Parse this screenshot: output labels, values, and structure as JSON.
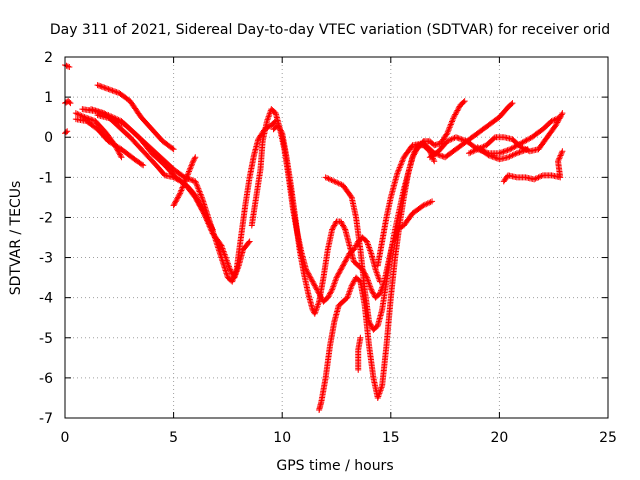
{
  "chart_data": {
    "type": "scatter",
    "title": "Day 311 of 2021, Sidereal Day-to-day VTEC variation (SDTVAR) for receiver orid",
    "xlabel": "GPS time / hours",
    "ylabel": "SDTVAR / TECUs",
    "xlim": [
      0,
      25
    ],
    "ylim": [
      -7,
      2
    ],
    "xticks": [
      0,
      5,
      10,
      15,
      20,
      25
    ],
    "yticks": [
      -7,
      -6,
      -5,
      -4,
      -3,
      -2,
      -1,
      0,
      1,
      2
    ],
    "grid": true,
    "marker": "+",
    "color": "#ff0000",
    "series": [
      {
        "values": [
          [
            0.0,
            1.8
          ],
          [
            0.2,
            1.75
          ]
        ]
      },
      {
        "values": [
          [
            0.0,
            0.85
          ],
          [
            0.15,
            0.9
          ],
          [
            0.25,
            0.85
          ]
        ]
      },
      {
        "values": [
          [
            0.0,
            0.1
          ],
          [
            0.1,
            0.15
          ]
        ]
      },
      {
        "values": [
          [
            0.5,
            0.6
          ],
          [
            0.9,
            0.5
          ],
          [
            1.4,
            0.4
          ],
          [
            1.9,
            0.1
          ],
          [
            2.3,
            -0.2
          ],
          [
            2.6,
            -0.5
          ]
        ]
      },
      {
        "values": [
          [
            0.5,
            0.45
          ],
          [
            1.0,
            0.4
          ],
          [
            1.5,
            0.2
          ],
          [
            2.0,
            -0.1
          ],
          [
            2.6,
            -0.3
          ],
          [
            3.2,
            -0.55
          ],
          [
            3.6,
            -0.7
          ]
        ]
      },
      {
        "values": [
          [
            1.2,
            0.7
          ],
          [
            1.8,
            0.6
          ],
          [
            2.4,
            0.3
          ],
          [
            3.0,
            0.0
          ],
          [
            3.6,
            -0.35
          ],
          [
            4.2,
            -0.7
          ],
          [
            4.6,
            -0.95
          ],
          [
            5.0,
            -1.0
          ],
          [
            5.5,
            -1.15
          ],
          [
            6.0,
            -1.5
          ],
          [
            6.4,
            -1.9
          ],
          [
            6.8,
            -2.3
          ]
        ]
      },
      {
        "values": [
          [
            1.5,
            0.55
          ],
          [
            2.2,
            0.45
          ],
          [
            2.8,
            0.3
          ],
          [
            3.4,
            0.0
          ],
          [
            4.0,
            -0.4
          ],
          [
            4.6,
            -0.7
          ],
          [
            5.1,
            -1.0
          ],
          [
            5.6,
            -1.2
          ],
          [
            6.0,
            -1.45
          ],
          [
            6.4,
            -1.9
          ],
          [
            6.8,
            -2.4
          ],
          [
            7.2,
            -2.7
          ],
          [
            7.6,
            -3.3
          ],
          [
            7.8,
            -3.5
          ],
          [
            8.0,
            -3.2
          ],
          [
            8.2,
            -2.8
          ],
          [
            8.5,
            -2.6
          ]
        ]
      },
      {
        "values": [
          [
            0.8,
            0.7
          ],
          [
            1.4,
            0.65
          ],
          [
            2.0,
            0.55
          ],
          [
            2.6,
            0.4
          ],
          [
            3.2,
            0.1
          ],
          [
            3.8,
            -0.2
          ],
          [
            4.4,
            -0.5
          ],
          [
            5.0,
            -0.8
          ],
          [
            5.5,
            -1.0
          ],
          [
            6.0,
            -1.1
          ],
          [
            6.3,
            -1.5
          ],
          [
            6.6,
            -2.0
          ],
          [
            6.9,
            -2.5
          ],
          [
            7.2,
            -3.0
          ],
          [
            7.5,
            -3.5
          ],
          [
            7.7,
            -3.6
          ],
          [
            7.9,
            -3.3
          ],
          [
            8.1,
            -2.5
          ],
          [
            8.3,
            -1.7
          ],
          [
            8.5,
            -1.0
          ],
          [
            8.7,
            -0.45
          ],
          [
            8.9,
            -0.05
          ],
          [
            9.2,
            0.2
          ],
          [
            9.5,
            0.3
          ],
          [
            9.7,
            0.4
          ]
        ]
      },
      {
        "values": [
          [
            1.5,
            1.3
          ],
          [
            2.0,
            1.2
          ],
          [
            2.5,
            1.1
          ],
          [
            3.0,
            0.9
          ],
          [
            3.5,
            0.5
          ],
          [
            4.0,
            0.2
          ],
          [
            4.5,
            -0.1
          ],
          [
            5.0,
            -0.3
          ]
        ]
      },
      {
        "values": [
          [
            5.0,
            -1.7
          ],
          [
            5.3,
            -1.4
          ],
          [
            5.6,
            -1.0
          ],
          [
            5.9,
            -0.6
          ],
          [
            6.0,
            -0.5
          ]
        ]
      },
      {
        "values": [
          [
            8.6,
            -2.2
          ],
          [
            8.8,
            -1.5
          ],
          [
            9.0,
            -0.8
          ],
          [
            9.1,
            -0.1
          ],
          [
            9.3,
            0.4
          ],
          [
            9.5,
            0.7
          ],
          [
            9.7,
            0.6
          ],
          [
            9.9,
            0.2
          ],
          [
            10.1,
            -0.3
          ],
          [
            10.3,
            -1.0
          ],
          [
            10.5,
            -1.8
          ],
          [
            10.7,
            -2.4
          ],
          [
            10.9,
            -2.9
          ],
          [
            11.1,
            -3.3
          ],
          [
            11.3,
            -3.5
          ],
          [
            11.5,
            -3.7
          ],
          [
            11.7,
            -3.9
          ],
          [
            11.9,
            -4.1
          ],
          [
            12.1,
            -4.0
          ],
          [
            12.3,
            -3.8
          ],
          [
            12.5,
            -3.5
          ],
          [
            12.7,
            -3.3
          ],
          [
            12.9,
            -3.1
          ],
          [
            13.1,
            -2.9
          ],
          [
            13.3,
            -2.8
          ],
          [
            13.5,
            -2.6
          ],
          [
            13.7,
            -2.5
          ],
          [
            13.9,
            -2.6
          ],
          [
            14.1,
            -2.9
          ],
          [
            14.3,
            -3.3
          ],
          [
            14.5,
            -3.6
          ]
        ]
      },
      {
        "values": [
          [
            9.6,
            0.2
          ],
          [
            9.8,
            0.3
          ],
          [
            10.0,
            0.1
          ],
          [
            10.2,
            -0.5
          ],
          [
            10.4,
            -1.2
          ],
          [
            10.6,
            -2.0
          ],
          [
            10.8,
            -2.8
          ],
          [
            11.0,
            -3.4
          ],
          [
            11.2,
            -3.9
          ],
          [
            11.4,
            -4.3
          ],
          [
            11.5,
            -4.4
          ],
          [
            11.7,
            -4.1
          ],
          [
            11.9,
            -3.5
          ],
          [
            12.1,
            -2.8
          ],
          [
            12.3,
            -2.3
          ],
          [
            12.5,
            -2.1
          ],
          [
            12.7,
            -2.1
          ],
          [
            12.9,
            -2.3
          ],
          [
            13.1,
            -2.7
          ],
          [
            13.3,
            -3.1
          ],
          [
            13.5,
            -3.2
          ],
          [
            13.7,
            -3.3
          ],
          [
            13.9,
            -3.5
          ],
          [
            14.1,
            -3.8
          ],
          [
            14.3,
            -4.0
          ],
          [
            14.5,
            -3.9
          ],
          [
            14.7,
            -3.6
          ],
          [
            14.9,
            -3.1
          ],
          [
            15.1,
            -2.6
          ],
          [
            15.3,
            -2.3
          ],
          [
            15.6,
            -2.2
          ],
          [
            16.0,
            -1.9
          ],
          [
            16.5,
            -1.7
          ],
          [
            16.9,
            -1.6
          ]
        ]
      },
      {
        "values": [
          [
            11.7,
            -6.8
          ],
          [
            11.8,
            -6.6
          ],
          [
            12.0,
            -6.0
          ],
          [
            12.2,
            -5.2
          ],
          [
            12.4,
            -4.6
          ],
          [
            12.6,
            -4.2
          ],
          [
            12.8,
            -4.1
          ],
          [
            13.0,
            -4.0
          ],
          [
            13.2,
            -3.7
          ],
          [
            13.4,
            -3.5
          ],
          [
            13.6,
            -3.6
          ],
          [
            13.8,
            -4.2
          ],
          [
            14.0,
            -5.2
          ],
          [
            14.2,
            -6.0
          ],
          [
            14.4,
            -6.5
          ],
          [
            14.6,
            -6.2
          ],
          [
            14.8,
            -5.2
          ],
          [
            15.0,
            -4.0
          ],
          [
            15.2,
            -3.0
          ],
          [
            15.4,
            -2.2
          ],
          [
            15.6,
            -1.5
          ],
          [
            15.8,
            -0.9
          ],
          [
            16.0,
            -0.5
          ],
          [
            16.2,
            -0.2
          ],
          [
            16.5,
            -0.2
          ],
          [
            16.8,
            -0.35
          ],
          [
            17.0,
            -0.6
          ]
        ]
      },
      {
        "values": [
          [
            12.0,
            -1.0
          ],
          [
            12.4,
            -1.1
          ],
          [
            12.8,
            -1.2
          ],
          [
            13.2,
            -1.5
          ],
          [
            13.4,
            -2.0
          ],
          [
            13.6,
            -2.8
          ],
          [
            13.8,
            -3.8
          ],
          [
            14.0,
            -4.6
          ],
          [
            14.2,
            -4.8
          ],
          [
            14.4,
            -4.7
          ],
          [
            14.6,
            -4.3
          ],
          [
            14.8,
            -3.6
          ],
          [
            15.0,
            -2.9
          ],
          [
            15.2,
            -2.3
          ],
          [
            15.4,
            -1.8
          ],
          [
            15.6,
            -1.3
          ],
          [
            15.8,
            -0.9
          ],
          [
            16.0,
            -0.5
          ],
          [
            16.2,
            -0.3
          ],
          [
            16.5,
            -0.1
          ],
          [
            16.8,
            -0.1
          ],
          [
            17.0,
            -0.2
          ],
          [
            17.3,
            -0.15
          ],
          [
            17.6,
            0.1
          ],
          [
            17.9,
            0.5
          ],
          [
            18.2,
            0.8
          ],
          [
            18.4,
            0.9
          ]
        ]
      },
      {
        "values": [
          [
            13.5,
            -5.8
          ],
          [
            13.5,
            -5.3
          ],
          [
            13.6,
            -5.0
          ]
        ]
      },
      {
        "values": [
          [
            14.4,
            -3.2
          ],
          [
            14.6,
            -2.6
          ],
          [
            14.8,
            -2.0
          ],
          [
            15.0,
            -1.5
          ],
          [
            15.3,
            -0.9
          ],
          [
            15.6,
            -0.5
          ],
          [
            16.0,
            -0.2
          ],
          [
            16.5,
            -0.15
          ],
          [
            17.0,
            -0.4
          ],
          [
            17.5,
            -0.5
          ],
          [
            18.0,
            -0.3
          ],
          [
            18.5,
            -0.1
          ],
          [
            19.0,
            0.1
          ],
          [
            19.5,
            0.3
          ],
          [
            20.0,
            0.5
          ],
          [
            20.4,
            0.75
          ],
          [
            20.6,
            0.85
          ]
        ]
      },
      {
        "values": [
          [
            16.8,
            -0.5
          ],
          [
            17.2,
            -0.35
          ],
          [
            17.6,
            -0.1
          ],
          [
            18.0,
            0.0
          ],
          [
            18.5,
            -0.1
          ],
          [
            19.0,
            -0.3
          ],
          [
            19.5,
            -0.4
          ],
          [
            20.0,
            -0.4
          ],
          [
            20.5,
            -0.3
          ],
          [
            21.0,
            -0.15
          ],
          [
            21.5,
            0.0
          ],
          [
            22.0,
            0.2
          ],
          [
            22.4,
            0.4
          ],
          [
            22.8,
            0.5
          ]
        ]
      },
      {
        "values": [
          [
            18.6,
            -0.4
          ],
          [
            19.0,
            -0.3
          ],
          [
            19.4,
            -0.2
          ],
          [
            19.8,
            0.0
          ],
          [
            20.2,
            0.0
          ],
          [
            20.6,
            -0.05
          ],
          [
            21.0,
            -0.25
          ],
          [
            21.4,
            -0.35
          ],
          [
            21.8,
            -0.3
          ],
          [
            22.2,
            0.0
          ],
          [
            22.6,
            0.3
          ],
          [
            22.9,
            0.6
          ]
        ]
      },
      {
        "values": [
          [
            20.2,
            -1.1
          ],
          [
            20.4,
            -0.95
          ],
          [
            20.8,
            -1.0
          ],
          [
            21.2,
            -1.0
          ],
          [
            21.6,
            -1.05
          ],
          [
            22.0,
            -0.95
          ],
          [
            22.4,
            -0.95
          ],
          [
            22.8,
            -1.0
          ],
          [
            22.7,
            -0.6
          ],
          [
            22.9,
            -0.35
          ]
        ]
      },
      {
        "values": [
          [
            19.0,
            -0.25
          ],
          [
            19.5,
            -0.45
          ],
          [
            20.0,
            -0.55
          ],
          [
            20.4,
            -0.5
          ],
          [
            20.8,
            -0.4
          ],
          [
            21.3,
            -0.3
          ]
        ]
      }
    ]
  }
}
